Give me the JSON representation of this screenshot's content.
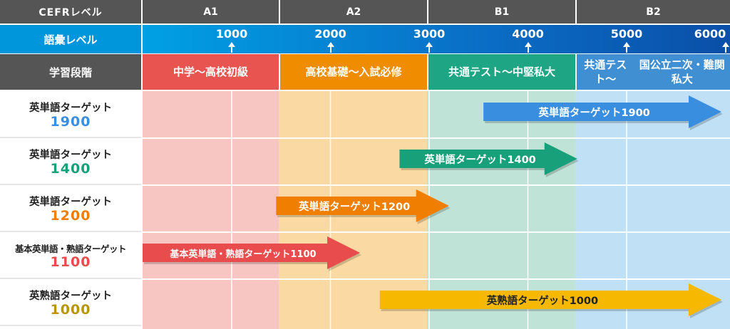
{
  "header": {
    "cefr_label": "CEFRレベル",
    "vocab_label": "語彙レベル",
    "stage_label": "学習段階"
  },
  "cefr_levels": [
    {
      "label": "A1"
    },
    {
      "label": "A2"
    },
    {
      "label": "B1"
    },
    {
      "label": "B2"
    }
  ],
  "vocab_ticks": [
    "1000",
    "2000",
    "3000",
    "4000",
    "5000",
    "6000"
  ],
  "stages": [
    {
      "line1": "中学〜高校初級",
      "line2": "",
      "color": "#e85550",
      "bg": "#f7c6c3"
    },
    {
      "line1": "高校基礎〜入試必修",
      "line2": "",
      "color": "#f08c00",
      "bg": "#fad9a2"
    },
    {
      "line1": "共通テスト〜中堅私大",
      "line2": "",
      "color": "#1ea584",
      "bg": "#c0e3d8"
    },
    {
      "line1": "共通テスト〜",
      "line2": "国公立二次・難関私大",
      "color": "#3f8fd2",
      "bg": "#bfe0f5"
    }
  ],
  "books": [
    {
      "name": "英単語ターゲット",
      "number": "1900",
      "color": "#3a8ee0",
      "arrow_label": "英単語ターゲット1900",
      "from_level": 3550,
      "to_level": 6000
    },
    {
      "name": "英単語ターゲット",
      "number": "1400",
      "color": "#17a079",
      "arrow_label": "英単語ターゲット1400",
      "from_level": 2700,
      "to_level": 4500
    },
    {
      "name": "英単語ターゲット",
      "number": "1200",
      "color": "#f07e00",
      "arrow_label": "英単語ターゲット1200",
      "from_level": 1450,
      "to_level": 3200
    },
    {
      "name": "基本英単語・熟語ターゲット",
      "number": "1100",
      "color": "#e84c4c",
      "arrow_label": "基本英単語・熟語ターゲット1100",
      "from_level": 0,
      "to_level": 2300
    },
    {
      "name": "英熟語ターゲット",
      "number": "1000",
      "color": "#b8960c",
      "arrow_color": "#f6b800",
      "arrow_label": "英熟語ターゲット1000",
      "from_level": 2500,
      "to_level": 6000
    }
  ]
}
